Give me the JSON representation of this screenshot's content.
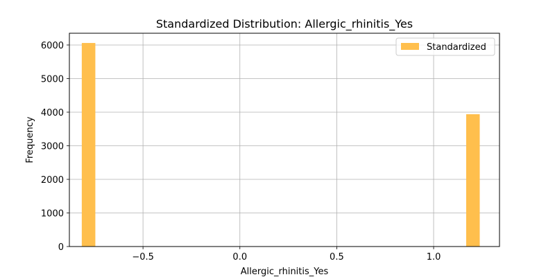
{
  "chart_data": {
    "type": "bar",
    "title": "Standardized Distribution: Allergic_rhinitis_Yes",
    "xlabel": "Allergic_rhinitis_Yes",
    "ylabel": "Frequency",
    "xlim": [
      -0.88,
      1.34
    ],
    "ylim": [
      0,
      6350
    ],
    "x_ticks": [
      -0.5,
      0.0,
      0.5,
      1.0
    ],
    "x_tick_labels": [
      "−0.5",
      "0.0",
      "0.5",
      "1.0"
    ],
    "y_ticks": [
      0,
      1000,
      2000,
      3000,
      4000,
      5000,
      6000
    ],
    "y_tick_labels": [
      "0",
      "1000",
      "2000",
      "3000",
      "4000",
      "5000",
      "6000"
    ],
    "grid": true,
    "legend": {
      "position": "top-right",
      "entries": [
        "Standardized"
      ]
    },
    "series": [
      {
        "name": "Standardized",
        "color": "#ffbf4d",
        "bins": [
          {
            "x0": -0.816,
            "x1": -0.746,
            "count": 6060
          },
          {
            "x0": 1.168,
            "x1": 1.238,
            "count": 3940
          }
        ]
      }
    ]
  }
}
